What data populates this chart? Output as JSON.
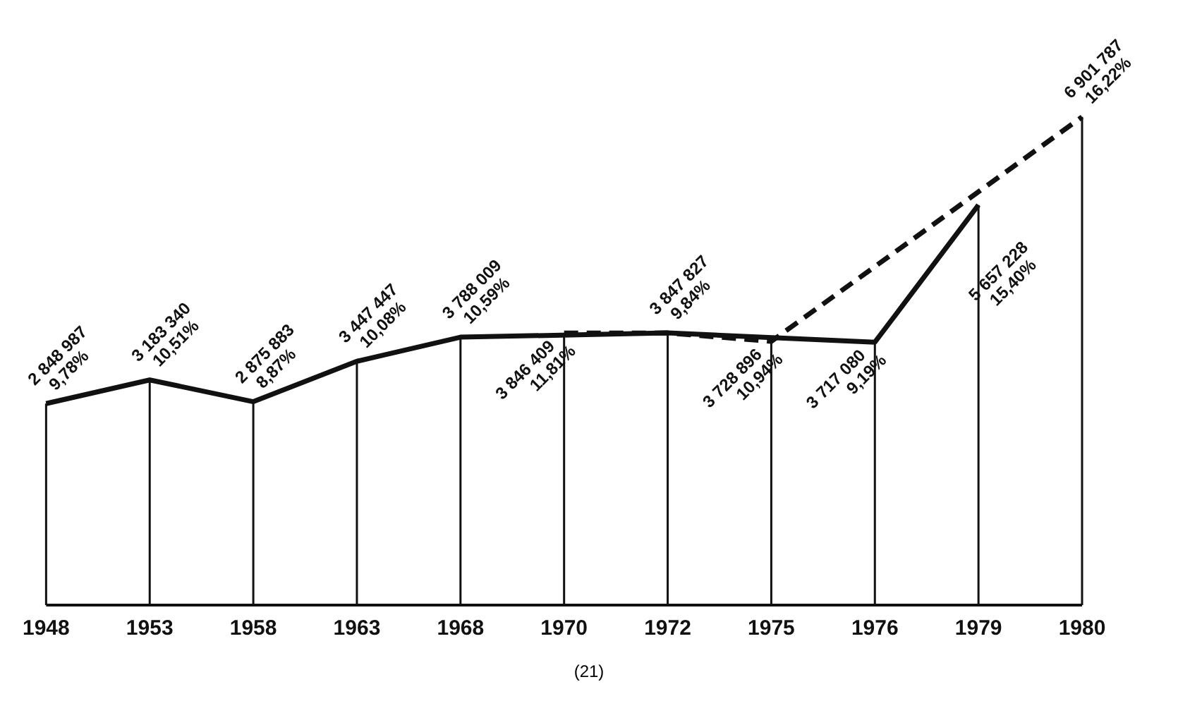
{
  "chart_data": {
    "type": "line",
    "categories": [
      "1948",
      "1953",
      "1958",
      "1963",
      "1968",
      "1970",
      "1972",
      "1975",
      "1976",
      "1979",
      "1980"
    ],
    "series": [
      {
        "color": "#111111",
        "line_style": "solid",
        "values": [
          2848987,
          3183340,
          2875883,
          3447447,
          3788009,
          null,
          3847827,
          null,
          3717080,
          5657228,
          null
        ],
        "value_labels": [
          "2 848 987\n9,78%",
          "3 183 340\n10,51%",
          "2 875 883\n8,87%",
          "3 447 447\n10,08%",
          "3 788 009\n10,59%",
          null,
          "3 847 827\n9,84%",
          null,
          "3 717 080\n9,19%",
          "5 657 228\n15,40%",
          null
        ]
      },
      {
        "color": "#111111",
        "line_style": "dashed",
        "values": [
          null,
          null,
          null,
          null,
          null,
          3846409,
          3847827,
          3728896,
          null,
          null,
          6901787
        ],
        "value_labels": [
          null,
          null,
          null,
          null,
          null,
          "3 846 409\n11,81%",
          null,
          "3 728 896\n10,94%",
          null,
          null,
          "6 901 787\n16,22%"
        ]
      }
    ],
    "marker": "none",
    "grid": "x",
    "legend": false,
    "annotations": [
      "(21)"
    ]
  }
}
